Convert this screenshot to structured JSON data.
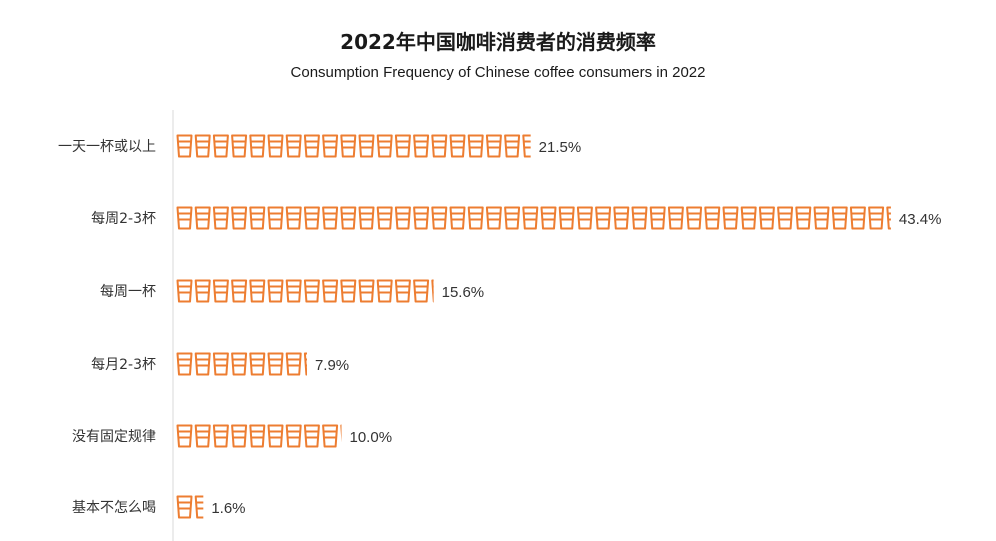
{
  "colors": {
    "cup": "#ED7D31",
    "axis": "#d9d9d9",
    "text": "#333333"
  },
  "icon": "coffee-cup-icon",
  "chart_data": {
    "type": "bar",
    "orientation": "horizontal",
    "title": "2022年中国咖啡消费者的消费频率",
    "subtitle": "Consumption Frequency of Chinese coffee consumers in 2022",
    "xlabel": "",
    "ylabel": "",
    "unit": "%",
    "categories": [
      "一天一杯或以上",
      "每周2-3杯",
      "每周一杯",
      "每月2-3杯",
      "没有固定规律",
      "基本不怎么喝"
    ],
    "values": [
      21.5,
      43.4,
      15.6,
      7.9,
      10.0,
      1.6
    ],
    "data_labels": [
      "21.5%",
      "43.4%",
      "15.6%",
      "7.9%",
      "10.0%",
      "1.6%"
    ],
    "pictograph_unit_percent": 1.6,
    "grid": false,
    "legend": "none"
  }
}
